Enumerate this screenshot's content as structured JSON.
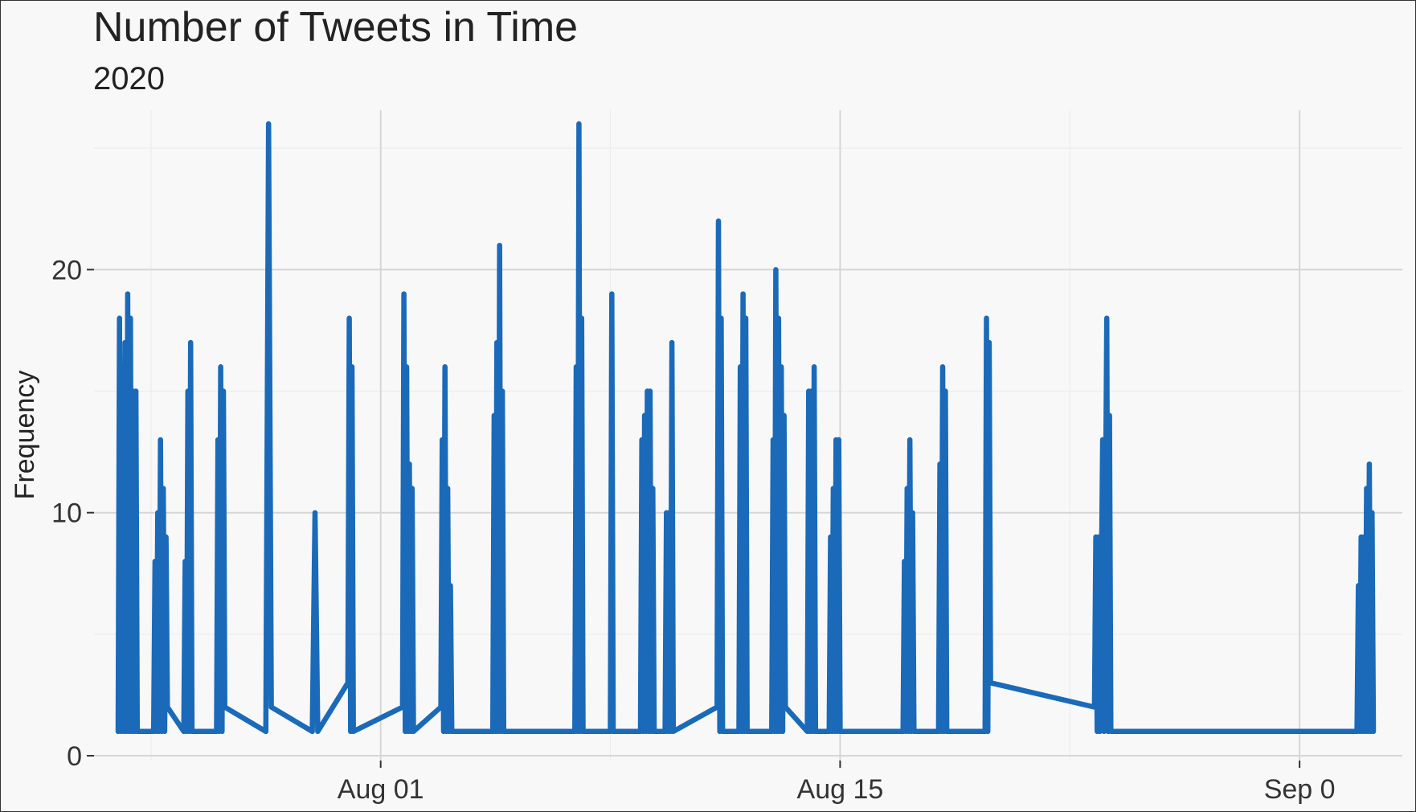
{
  "chart_data": {
    "type": "line",
    "title": "Number of Tweets in Time",
    "subtitle": "2020",
    "xlabel": "",
    "ylabel": "Frequency",
    "x_scale": "time",
    "xlim": [
      "2020-07-24",
      "2020-08-31"
    ],
    "ylim": [
      0,
      26
    ],
    "x_ticks": [
      {
        "x": "2020-08-01",
        "label": "Aug 01"
      },
      {
        "x": "2020-08-15",
        "label": "Aug 15"
      },
      {
        "x": "2020-08-29",
        "label": "Sep 0"
      }
    ],
    "y_ticks": [
      {
        "y": 0,
        "label": "0"
      },
      {
        "y": 10,
        "label": "10"
      },
      {
        "y": 20,
        "label": "20"
      }
    ],
    "grid": true,
    "legend": "none",
    "colors": {
      "line": "#1a6ab9",
      "grid_major": "#d6d6d6",
      "grid_minor": "#ececec",
      "background": "#f8f8f8"
    },
    "series": [
      {
        "points": [
          [
            "2020-07-24 00:00",
            1
          ],
          [
            "2020-07-24 01:00",
            18
          ],
          [
            "2020-07-24 02:00",
            1
          ],
          [
            "2020-07-24 03:00",
            13
          ],
          [
            "2020-07-24 04:00",
            1
          ],
          [
            "2020-07-24 05:00",
            17
          ],
          [
            "2020-07-24 06:00",
            1
          ],
          [
            "2020-07-24 07:00",
            19
          ],
          [
            "2020-07-24 08:00",
            1
          ],
          [
            "2020-07-24 09:00",
            18
          ],
          [
            "2020-07-24 10:00",
            1
          ],
          [
            "2020-07-24 11:00",
            15
          ],
          [
            "2020-07-24 12:00",
            1
          ],
          [
            "2020-07-24 13:00",
            15
          ],
          [
            "2020-07-24 14:00",
            1
          ],
          [
            "2020-07-25 02:00",
            1
          ],
          [
            "2020-07-25 03:00",
            8
          ],
          [
            "2020-07-25 04:00",
            1
          ],
          [
            "2020-07-25 05:00",
            10
          ],
          [
            "2020-07-25 06:00",
            1
          ],
          [
            "2020-07-25 07:00",
            13
          ],
          [
            "2020-07-25 08:00",
            1
          ],
          [
            "2020-07-25 09:00",
            11
          ],
          [
            "2020-07-25 10:00",
            1
          ],
          [
            "2020-07-25 11:00",
            9
          ],
          [
            "2020-07-25 12:00",
            2
          ],
          [
            "2020-07-26 00:00",
            1
          ],
          [
            "2020-07-26 01:00",
            8
          ],
          [
            "2020-07-26 02:00",
            1
          ],
          [
            "2020-07-26 03:00",
            15
          ],
          [
            "2020-07-26 04:00",
            1
          ],
          [
            "2020-07-26 05:00",
            17
          ],
          [
            "2020-07-26 06:00",
            1
          ],
          [
            "2020-07-27 00:00",
            1
          ],
          [
            "2020-07-27 01:00",
            13
          ],
          [
            "2020-07-27 02:00",
            1
          ],
          [
            "2020-07-27 03:00",
            16
          ],
          [
            "2020-07-27 04:00",
            1
          ],
          [
            "2020-07-27 05:00",
            15
          ],
          [
            "2020-07-27 06:00",
            2
          ],
          [
            "2020-07-28 12:00",
            1
          ],
          [
            "2020-07-28 14:00",
            26
          ],
          [
            "2020-07-28 16:00",
            2
          ],
          [
            "2020-07-29 22:00",
            1
          ],
          [
            "2020-07-30 00:00",
            10
          ],
          [
            "2020-07-30 02:00",
            1
          ],
          [
            "2020-07-31 00:00",
            3
          ],
          [
            "2020-07-31 01:00",
            18
          ],
          [
            "2020-07-31 02:00",
            1
          ],
          [
            "2020-07-31 03:00",
            16
          ],
          [
            "2020-07-31 04:00",
            1
          ],
          [
            "2020-08-01 16:00",
            2
          ],
          [
            "2020-08-01 17:00",
            19
          ],
          [
            "2020-08-01 18:00",
            1
          ],
          [
            "2020-08-01 19:00",
            16
          ],
          [
            "2020-08-01 20:00",
            1
          ],
          [
            "2020-08-01 21:00",
            12
          ],
          [
            "2020-08-01 22:00",
            1
          ],
          [
            "2020-08-01 23:00",
            11
          ],
          [
            "2020-08-02 00:00",
            1
          ],
          [
            "2020-08-02 20:00",
            2
          ],
          [
            "2020-08-02 21:00",
            13
          ],
          [
            "2020-08-02 22:00",
            1
          ],
          [
            "2020-08-02 23:00",
            16
          ],
          [
            "2020-08-03 00:00",
            1
          ],
          [
            "2020-08-03 01:00",
            11
          ],
          [
            "2020-08-03 02:00",
            1
          ],
          [
            "2020-08-03 03:00",
            7
          ],
          [
            "2020-08-03 04:00",
            1
          ],
          [
            "2020-08-04 10:00",
            1
          ],
          [
            "2020-08-04 11:00",
            14
          ],
          [
            "2020-08-04 12:00",
            1
          ],
          [
            "2020-08-04 13:00",
            17
          ],
          [
            "2020-08-04 14:00",
            1
          ],
          [
            "2020-08-04 15:00",
            21
          ],
          [
            "2020-08-04 16:00",
            1
          ],
          [
            "2020-08-04 17:00",
            15
          ],
          [
            "2020-08-04 18:00",
            1
          ],
          [
            "2020-08-06 22:00",
            1
          ],
          [
            "2020-08-06 23:00",
            16
          ],
          [
            "2020-08-07 00:00",
            1
          ],
          [
            "2020-08-07 01:00",
            26
          ],
          [
            "2020-08-07 02:00",
            1
          ],
          [
            "2020-08-07 03:00",
            18
          ],
          [
            "2020-08-07 04:00",
            1
          ],
          [
            "2020-08-08 00:00",
            1
          ],
          [
            "2020-08-08 01:00",
            19
          ],
          [
            "2020-08-08 02:00",
            1
          ],
          [
            "2020-08-08 22:00",
            1
          ],
          [
            "2020-08-08 23:00",
            13
          ],
          [
            "2020-08-09 00:00",
            1
          ],
          [
            "2020-08-09 01:00",
            14
          ],
          [
            "2020-08-09 02:00",
            1
          ],
          [
            "2020-08-09 03:00",
            15
          ],
          [
            "2020-08-09 04:00",
            1
          ],
          [
            "2020-08-09 05:00",
            15
          ],
          [
            "2020-08-09 06:00",
            1
          ],
          [
            "2020-08-09 07:00",
            11
          ],
          [
            "2020-08-09 08:00",
            1
          ],
          [
            "2020-08-09 16:00",
            1
          ],
          [
            "2020-08-09 17:00",
            10
          ],
          [
            "2020-08-09 18:00",
            1
          ],
          [
            "2020-08-09 19:00",
            10
          ],
          [
            "2020-08-09 20:00",
            1
          ],
          [
            "2020-08-09 21:00",
            17
          ],
          [
            "2020-08-09 22:00",
            1
          ],
          [
            "2020-08-11 06:00",
            2
          ],
          [
            "2020-08-11 07:00",
            22
          ],
          [
            "2020-08-11 08:00",
            1
          ],
          [
            "2020-08-11 09:00",
            18
          ],
          [
            "2020-08-11 10:00",
            1
          ],
          [
            "2020-08-11 22:00",
            1
          ],
          [
            "2020-08-11 23:00",
            16
          ],
          [
            "2020-08-12 00:00",
            1
          ],
          [
            "2020-08-12 01:00",
            19
          ],
          [
            "2020-08-12 02:00",
            1
          ],
          [
            "2020-08-12 03:00",
            18
          ],
          [
            "2020-08-12 04:00",
            1
          ],
          [
            "2020-08-12 22:00",
            1
          ],
          [
            "2020-08-12 23:00",
            13
          ],
          [
            "2020-08-13 00:00",
            1
          ],
          [
            "2020-08-13 01:00",
            20
          ],
          [
            "2020-08-13 02:00",
            1
          ],
          [
            "2020-08-13 03:00",
            18
          ],
          [
            "2020-08-13 04:00",
            1
          ],
          [
            "2020-08-13 05:00",
            16
          ],
          [
            "2020-08-13 06:00",
            1
          ],
          [
            "2020-08-13 07:00",
            14
          ],
          [
            "2020-08-13 08:00",
            2
          ],
          [
            "2020-08-14 00:00",
            1
          ],
          [
            "2020-08-14 01:00",
            15
          ],
          [
            "2020-08-14 02:00",
            1
          ],
          [
            "2020-08-14 03:00",
            15
          ],
          [
            "2020-08-14 04:00",
            1
          ],
          [
            "2020-08-14 05:00",
            16
          ],
          [
            "2020-08-14 06:00",
            1
          ],
          [
            "2020-08-14 16:00",
            1
          ],
          [
            "2020-08-14 17:00",
            9
          ],
          [
            "2020-08-14 18:00",
            1
          ],
          [
            "2020-08-14 19:00",
            11
          ],
          [
            "2020-08-14 20:00",
            1
          ],
          [
            "2020-08-14 21:00",
            13
          ],
          [
            "2020-08-14 22:00",
            1
          ],
          [
            "2020-08-14 23:00",
            13
          ],
          [
            "2020-08-15 00:00",
            1
          ],
          [
            "2020-08-16 22:00",
            1
          ],
          [
            "2020-08-16 23:00",
            8
          ],
          [
            "2020-08-17 00:00",
            1
          ],
          [
            "2020-08-17 01:00",
            11
          ],
          [
            "2020-08-17 02:00",
            1
          ],
          [
            "2020-08-17 03:00",
            13
          ],
          [
            "2020-08-17 04:00",
            1
          ],
          [
            "2020-08-17 05:00",
            10
          ],
          [
            "2020-08-17 06:00",
            1
          ],
          [
            "2020-08-18 00:00",
            1
          ],
          [
            "2020-08-18 01:00",
            12
          ],
          [
            "2020-08-18 02:00",
            1
          ],
          [
            "2020-08-18 03:00",
            16
          ],
          [
            "2020-08-18 04:00",
            1
          ],
          [
            "2020-08-18 05:00",
            15
          ],
          [
            "2020-08-18 06:00",
            1
          ],
          [
            "2020-08-19 10:00",
            1
          ],
          [
            "2020-08-19 11:00",
            18
          ],
          [
            "2020-08-19 12:00",
            1
          ],
          [
            "2020-08-19 13:00",
            17
          ],
          [
            "2020-08-19 14:00",
            3
          ],
          [
            "2020-08-22 18:00",
            2
          ],
          [
            "2020-08-22 19:00",
            9
          ],
          [
            "2020-08-22 20:00",
            1
          ],
          [
            "2020-08-22 21:00",
            9
          ],
          [
            "2020-08-22 22:00",
            1
          ],
          [
            "2020-08-23 00:00",
            13
          ],
          [
            "2020-08-23 01:00",
            1
          ],
          [
            "2020-08-23 03:00",
            18
          ],
          [
            "2020-08-23 04:00",
            1
          ],
          [
            "2020-08-23 05:00",
            14
          ],
          [
            "2020-08-23 06:00",
            1
          ],
          [
            "2020-08-30 18:00",
            1
          ],
          [
            "2020-08-30 19:00",
            7
          ],
          [
            "2020-08-30 20:00",
            1
          ],
          [
            "2020-08-30 21:00",
            9
          ],
          [
            "2020-08-30 22:00",
            1
          ],
          [
            "2020-08-30 23:00",
            9
          ],
          [
            "2020-08-31 00:00",
            1
          ],
          [
            "2020-08-31 01:00",
            11
          ],
          [
            "2020-08-31 02:00",
            1
          ],
          [
            "2020-08-31 03:00",
            12
          ],
          [
            "2020-08-31 04:00",
            1
          ],
          [
            "2020-08-31 05:00",
            10
          ],
          [
            "2020-08-31 06:00",
            1
          ]
        ]
      }
    ]
  }
}
